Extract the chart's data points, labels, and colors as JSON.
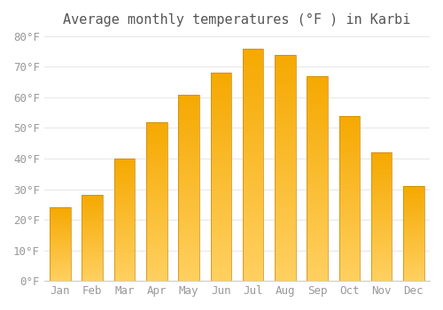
{
  "title": "Average monthly temperatures (°F ) in Karbi",
  "months": [
    "Jan",
    "Feb",
    "Mar",
    "Apr",
    "May",
    "Jun",
    "Jul",
    "Aug",
    "Sep",
    "Oct",
    "Nov",
    "Dec"
  ],
  "values": [
    24,
    28,
    40,
    52,
    61,
    68,
    76,
    74,
    67,
    54,
    42,
    31
  ],
  "bar_color_dark": "#F5A800",
  "bar_color_light": "#FFD060",
  "bar_edge_color": "#C8860A",
  "ylim": [
    0,
    80
  ],
  "yticks": [
    0,
    10,
    20,
    30,
    40,
    50,
    60,
    70,
    80
  ],
  "ytick_labels": [
    "0°F",
    "10°F",
    "20°F",
    "30°F",
    "40°F",
    "50°F",
    "60°F",
    "70°F",
    "80°F"
  ],
  "background_color": "#ffffff",
  "plot_bg_color": "#ffffff",
  "grid_color": "#e8e8e8",
  "title_fontsize": 11,
  "tick_fontsize": 9,
  "bar_width": 0.65,
  "tick_color": "#999999",
  "title_color": "#555555"
}
